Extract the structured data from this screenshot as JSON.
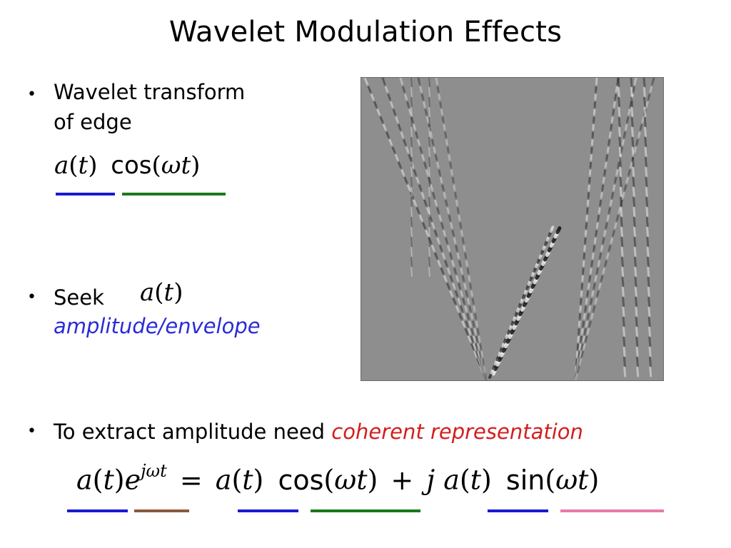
{
  "slide": {
    "title": "Wavelet Modulation Effects",
    "bullet1": {
      "line1": "Wavelet transform",
      "line2": "of edge"
    },
    "bullet2": {
      "prefix": "Seek",
      "emphasis": "amplitude/envelope"
    },
    "bullet3": {
      "prefix": "To extract amplitude need ",
      "emphasis": "coherent representation"
    },
    "bullet_marker": "•"
  },
  "math": {
    "a_of_t": "a(t)",
    "cos": "cos",
    "sin": "sin",
    "omega_t": "ωt",
    "exp_base": "e",
    "exp_power": "jωt",
    "equals": "=",
    "plus": "+",
    "j": "j"
  },
  "underline_colors": {
    "amplitude": "#1a1ad0",
    "cosine": "#1a7a1a",
    "exponential": "#8b5a3c",
    "sine": "#e87aa8"
  },
  "image": {
    "description_icon": "wavelet-coefficient-image"
  }
}
